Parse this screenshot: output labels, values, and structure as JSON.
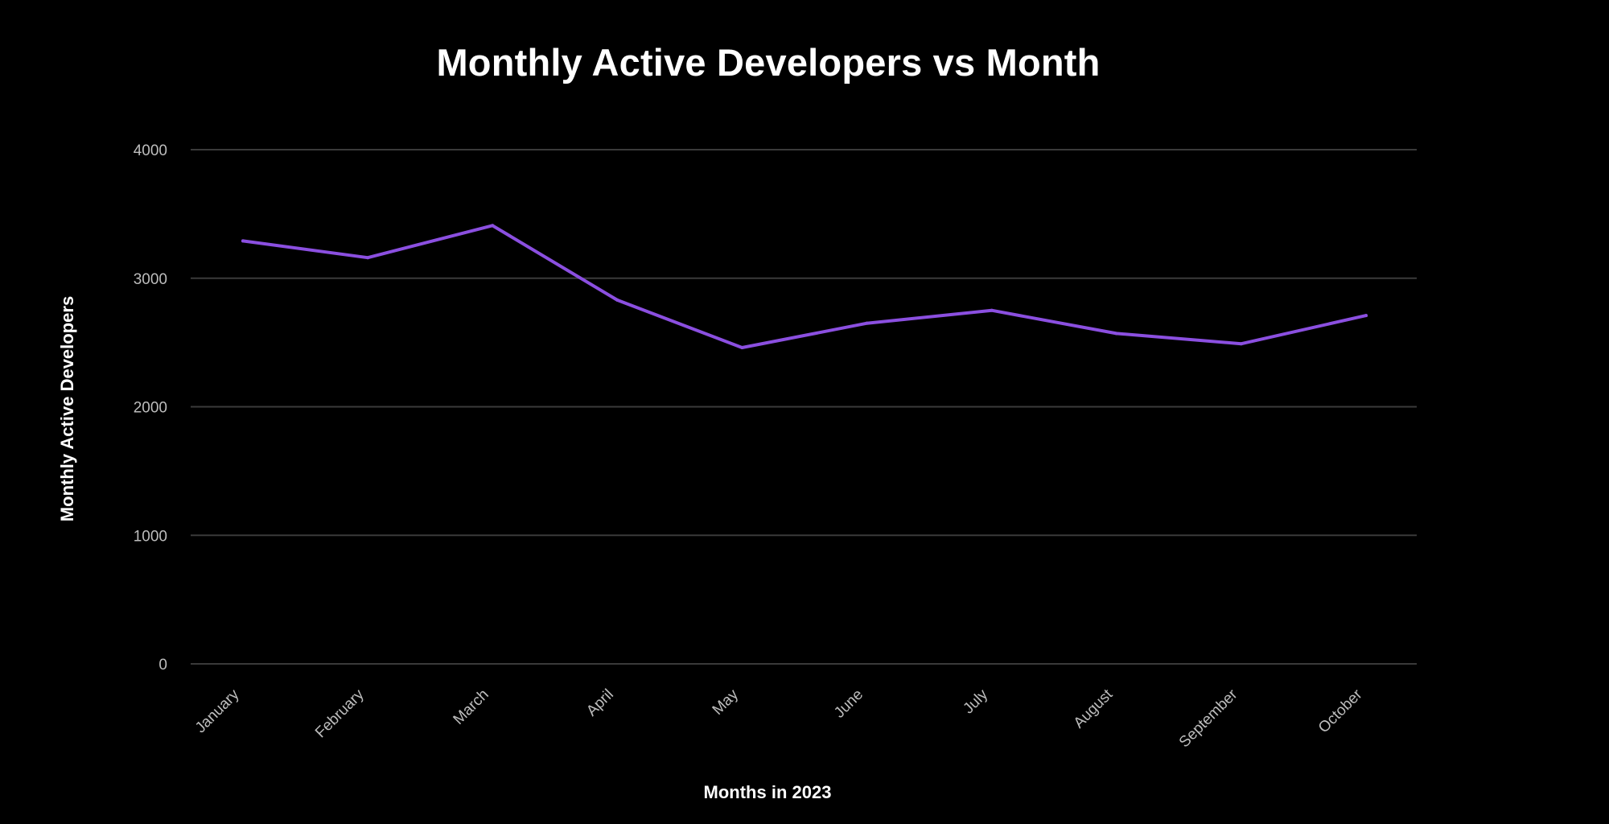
{
  "chart_data": {
    "type": "line",
    "title": "Monthly Active Developers vs Month",
    "xlabel": "Months in 2023",
    "ylabel": "Monthly Active Developers",
    "categories": [
      "January",
      "February",
      "March",
      "April",
      "May",
      "June",
      "July",
      "August",
      "September",
      "October"
    ],
    "series": [
      {
        "values": [
          3290,
          3160,
          3410,
          2830,
          2460,
          2650,
          2750,
          2570,
          2490,
          2710
        ],
        "color": "#8b4fe0"
      }
    ],
    "ylim": [
      0,
      4000
    ],
    "yticks": [
      0,
      1000,
      2000,
      3000,
      4000
    ],
    "grid": true,
    "background": "#000000",
    "grid_color": "#3a3a3a"
  }
}
